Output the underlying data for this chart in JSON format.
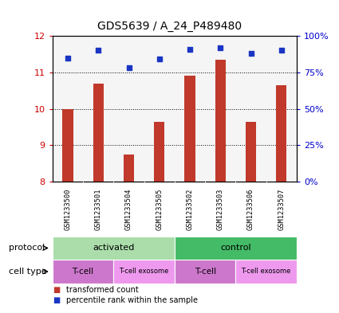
{
  "title": "GDS5639 / A_24_P489480",
  "samples": [
    "GSM1233500",
    "GSM1233501",
    "GSM1233504",
    "GSM1233505",
    "GSM1233502",
    "GSM1233503",
    "GSM1233506",
    "GSM1233507"
  ],
  "transformed_count": [
    10.0,
    10.7,
    8.75,
    9.65,
    10.9,
    11.35,
    9.65,
    10.65
  ],
  "percentile_rank": [
    85,
    90,
    78,
    84,
    91,
    92,
    88,
    90
  ],
  "ylim_left": [
    8,
    12
  ],
  "ylim_right": [
    0,
    100
  ],
  "yticks_left": [
    8,
    9,
    10,
    11,
    12
  ],
  "yticks_right": [
    0,
    25,
    50,
    75,
    100
  ],
  "ytick_labels_right": [
    "0%",
    "25%",
    "50%",
    "75%",
    "100%"
  ],
  "bar_color": "#c0392b",
  "dot_color": "#1a35c4",
  "bar_bottom": 8,
  "protocol_groups": [
    {
      "label": "activated",
      "start": 0,
      "end": 4,
      "color": "#aaddaa"
    },
    {
      "label": "control",
      "start": 4,
      "end": 8,
      "color": "#44bb66"
    }
  ],
  "cell_type_groups": [
    {
      "label": "T-cell",
      "start": 0,
      "end": 2,
      "color": "#cc77cc"
    },
    {
      "label": "T-cell exosome",
      "start": 2,
      "end": 4,
      "color": "#ee99ee"
    },
    {
      "label": "T-cell",
      "start": 4,
      "end": 6,
      "color": "#cc77cc"
    },
    {
      "label": "T-cell exosome",
      "start": 6,
      "end": 8,
      "color": "#ee99ee"
    }
  ],
  "protocol_label": "protocol",
  "cell_type_label": "cell type",
  "legend_red_label": "transformed count",
  "legend_blue_label": "percentile rank within the sample",
  "left_tick_color": "#cc0000",
  "right_tick_color": "#0000cc",
  "plot_bg": "#f5f5f5",
  "label_area_bg": "#cccccc"
}
